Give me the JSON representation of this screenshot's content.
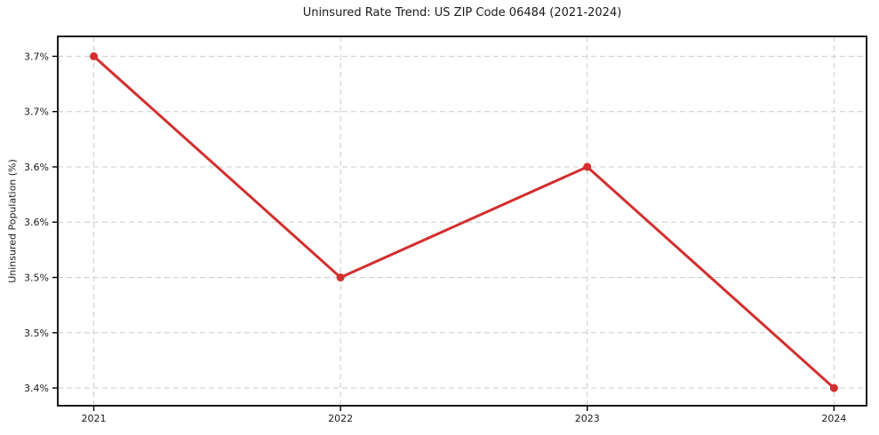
{
  "chart_data": {
    "type": "line",
    "title": "Uninsured Rate Trend: US ZIP Code 06484 (2021-2024)",
    "xlabel": "",
    "ylabel": "Uninsured Population (%)",
    "x": [
      2021,
      2022,
      2023,
      2024
    ],
    "y": [
      3.7,
      3.5,
      3.6,
      3.4
    ],
    "point_labels": [
      "3.7%",
      "3.5%",
      "3.6%",
      "3.4%"
    ],
    "xlim": [
      2020.854,
      2024.132
    ],
    "ylim": [
      3.384,
      3.718
    ],
    "xticks": {
      "values": [
        2021,
        2022,
        2023,
        2024
      ],
      "labels": [
        "2021",
        "2022",
        "2023",
        "2024"
      ]
    },
    "yticks": {
      "values": [
        3.7,
        3.65,
        3.6,
        3.55,
        3.5,
        3.45,
        3.4
      ],
      "labels": [
        "3.7%",
        "3.7%",
        "3.6%",
        "3.6%",
        "3.5%",
        "3.5%",
        "3.4%"
      ]
    },
    "grid": true,
    "grid_style": "dashed",
    "legend": false,
    "colors": {
      "line": "#d32f2f",
      "marker": "#d32f2f",
      "grid": "#cccccc",
      "spine": "#000000",
      "text": "#1a1a1a",
      "background": "#ffffff"
    }
  }
}
